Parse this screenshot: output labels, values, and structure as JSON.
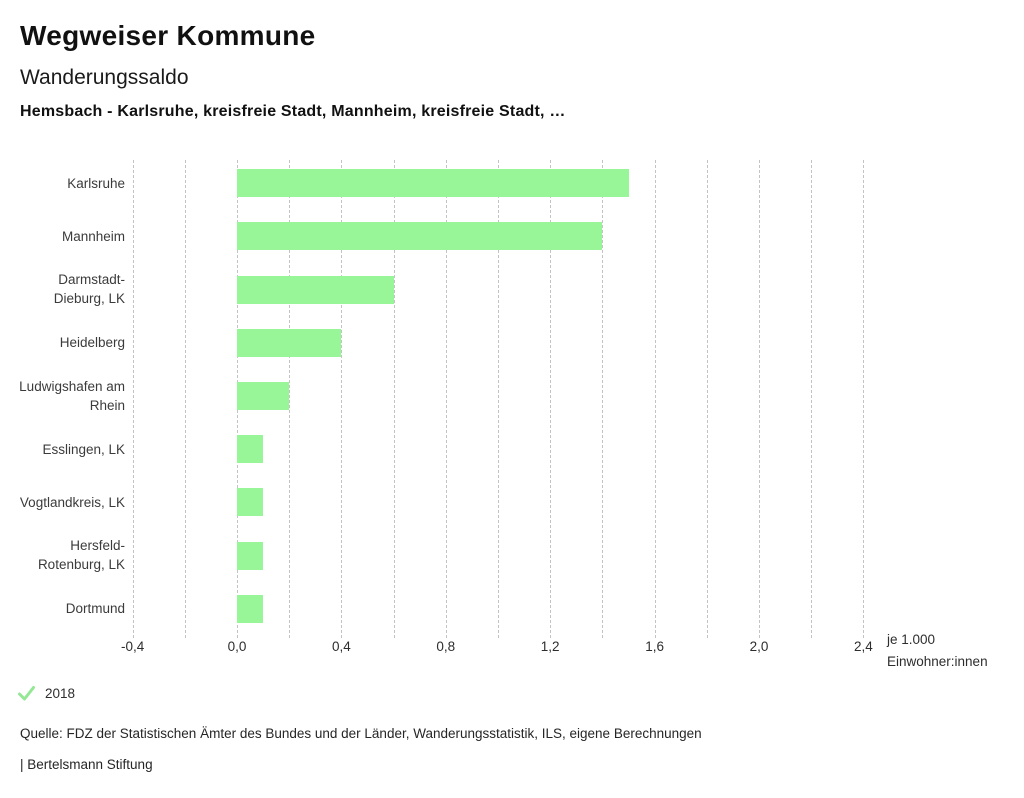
{
  "header": {
    "title": "Wegweiser Kommune",
    "subtitle": "Wanderungssaldo",
    "selection": "Hemsbach - Karlsruhe, kreisfreie Stadt, Mannheim, kreisfreie Stadt, …"
  },
  "chart_data": {
    "type": "bar",
    "orientation": "horizontal",
    "title": "Wanderungssaldo",
    "categories": [
      "Karlsruhe",
      "Mannheim",
      "Darmstadt-Dieburg, LK",
      "Heidelberg",
      "Ludwigshafen am Rhein",
      "Esslingen, LK",
      "Vogtlandkreis, LK",
      "Hersfeld-Rotenburg, LK",
      "Dortmund"
    ],
    "values": [
      1.5,
      1.4,
      0.6,
      0.4,
      0.2,
      0.1,
      0.1,
      0.1,
      0.1
    ],
    "xlabel": "je 1.000 Einwohner:innen",
    "xlabel_lines": [
      "je 1.000",
      "Einwohner:innen"
    ],
    "ylabel": "",
    "xlim": [
      -0.4,
      2.4
    ],
    "x_ticks": [
      -0.4,
      0.0,
      0.4,
      0.8,
      1.2,
      1.6,
      2.0,
      2.4
    ],
    "x_tick_labels": [
      "-0,4",
      "0,0",
      "0,4",
      "0,8",
      "1,2",
      "1,6",
      "2,0",
      "2,4"
    ],
    "gridline_step": 0.2,
    "grid": true,
    "legend_position": "bottom",
    "bar_color": "#98f598",
    "gridline_color": "#c3c3c3",
    "series_year": "2018"
  },
  "legend": {
    "check_icon": "✓",
    "check_color": "#94e894",
    "year": "2018"
  },
  "footer": {
    "source": "Quelle: FDZ der Statistischen Ämter des Bundes und der Länder, Wanderungsstatistik, ILS, eigene Berechnungen",
    "attribution": "| Bertelsmann Stiftung"
  }
}
